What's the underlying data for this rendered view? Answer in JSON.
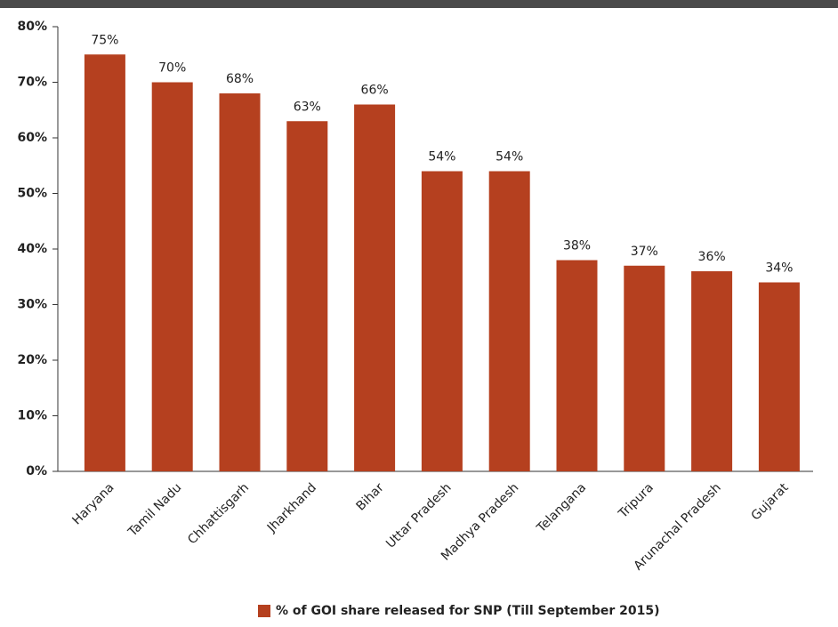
{
  "chart_data": {
    "type": "bar",
    "categories": [
      "Haryana",
      "Tamil Nadu",
      "Chhattisgarh",
      "Jharkhand",
      "Bihar",
      "Uttar Pradesh",
      "Madhya Pradesh",
      "Telangana",
      "Tripura",
      "Arunachal Pradesh",
      "Gujarat"
    ],
    "series": [
      {
        "name": "% of GOI share released for SNP (Till September 2015)",
        "color": "#b5401f",
        "values": [
          75,
          70,
          68,
          63,
          66,
          54,
          54,
          38,
          37,
          36,
          34
        ],
        "value_labels": [
          "75%",
          "70%",
          "68%",
          "63%",
          "66%",
          "54%",
          "54%",
          "38%",
          "37%",
          "36%",
          "34%"
        ]
      }
    ],
    "ylim": [
      0,
      80
    ],
    "yticks": [
      {
        "value": 0,
        "label": "0%"
      },
      {
        "value": 10,
        "label": "10%"
      },
      {
        "value": 20,
        "label": "20%"
      },
      {
        "value": 30,
        "label": "30%"
      },
      {
        "value": 40,
        "label": "40%"
      },
      {
        "value": 50,
        "label": "50%"
      },
      {
        "value": 60,
        "label": "60%"
      },
      {
        "value": 70,
        "label": "70%"
      },
      {
        "value": 80,
        "label": "80%"
      }
    ],
    "grid": false,
    "legend": "bottom"
  }
}
